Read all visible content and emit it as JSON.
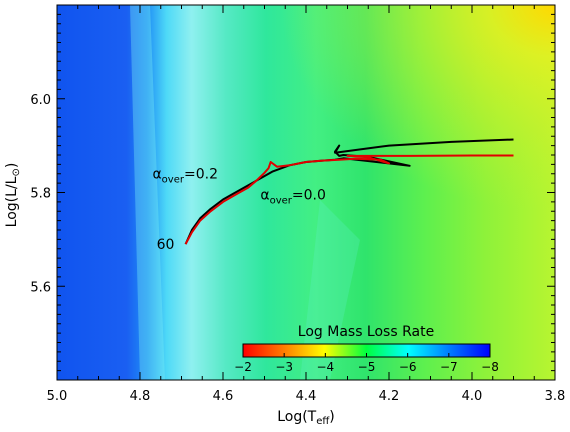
{
  "chart_data": {
    "type": "line",
    "xlabel": "Log(T",
    "xlabel_sub": "eff",
    "xlabel_close": ")",
    "ylabel": "Log(L/L",
    "ylabel_sub": "⊙",
    "ylabel_close": ")",
    "xlim": [
      5.0,
      3.8
    ],
    "ylim": [
      5.4,
      6.2
    ],
    "x_reversed": true,
    "x_ticks": [
      5.0,
      4.8,
      4.6,
      4.4,
      4.2,
      4.0,
      3.8
    ],
    "x_tick_labels": [
      "5.0",
      "4.8",
      "4.6",
      "4.4",
      "4.2",
      "4.0",
      "3.8"
    ],
    "y_ticks": [
      5.6,
      5.8,
      6.0
    ],
    "y_tick_labels": [
      "5.6",
      "5.8",
      "6.0"
    ],
    "background": "filled contour of Log Mass Loss Rate",
    "colorbar": {
      "title": "Log Mass Loss Rate",
      "ticks": [
        -2,
        -3,
        -4,
        -5,
        -6,
        -7,
        -8
      ],
      "tick_labels": [
        "−2",
        "−3",
        "−4",
        "−5",
        "−6",
        "−7",
        "−8"
      ],
      "range": [
        -2,
        -8
      ],
      "colors": [
        "#ff0000",
        "#ff8000",
        "#ffff00",
        "#00ff40",
        "#00ffff",
        "#0080ff",
        "#0000ff"
      ]
    },
    "series": [
      {
        "color": "#000000",
        "x": [
          4.69,
          4.675,
          4.655,
          4.63,
          4.6,
          4.57,
          4.54,
          4.51,
          4.48,
          4.44,
          4.4,
          4.36,
          4.33,
          4.31,
          4.15,
          4.25,
          4.31,
          4.32,
          4.33,
          4.32,
          4.33,
          4.2,
          4.05,
          3.9
        ],
        "y": [
          5.69,
          5.72,
          5.745,
          5.765,
          5.785,
          5.8,
          5.815,
          5.83,
          5.845,
          5.858,
          5.865,
          5.868,
          5.87,
          5.873,
          5.857,
          5.876,
          5.88,
          5.878,
          5.887,
          5.9,
          5.885,
          5.9,
          5.908,
          5.913
        ]
      },
      {
        "color": "#e00000",
        "x": [
          4.69,
          4.675,
          4.655,
          4.63,
          4.6,
          4.57,
          4.54,
          4.52,
          4.5,
          4.49,
          4.485,
          4.47,
          4.44,
          4.4,
          4.36,
          4.32,
          4.28,
          4.22,
          4.2,
          4.25,
          4.3,
          4.15,
          4.0,
          3.9
        ],
        "y": [
          5.69,
          5.715,
          5.74,
          5.76,
          5.78,
          5.795,
          5.81,
          5.825,
          5.842,
          5.852,
          5.865,
          5.855,
          5.858,
          5.865,
          5.868,
          5.87,
          5.872,
          5.87,
          5.862,
          5.875,
          5.878,
          5.878,
          5.879,
          5.879
        ]
      }
    ],
    "annotations": {
      "alpha_02": {
        "text": "α",
        "sub": "over",
        "eq": "=0.2",
        "x": 4.77,
        "y": 5.83
      },
      "alpha_00": {
        "text": "α",
        "sub": "over",
        "eq": "=0.0",
        "x": 4.51,
        "y": 5.785
      },
      "mass": {
        "text": "60",
        "x": 4.76,
        "y": 5.69
      }
    }
  }
}
